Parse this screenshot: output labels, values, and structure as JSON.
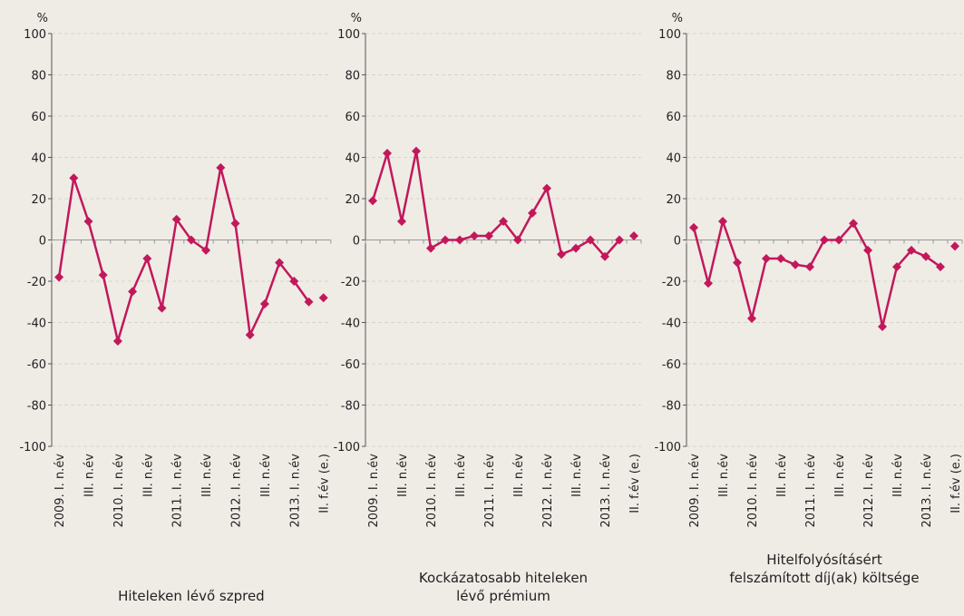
{
  "chart_data": [
    {
      "type": "line",
      "unit": "%",
      "title": [
        "Hiteleken lévő szpred"
      ],
      "categories": [
        "2009. I. n.év",
        null,
        "III. n.év",
        null,
        "2010. I. n.év",
        null,
        "III. n.év",
        null,
        "2011. I. n.év",
        null,
        "III. n.év",
        null,
        "2012. I. n.év",
        null,
        "III. n.év",
        null,
        "2013. I. n.év",
        null,
        "II. f.év (e.)"
      ],
      "series": [
        {
          "color": "#c2185b",
          "values": [
            -18,
            30,
            9,
            -17,
            -49,
            -25,
            -9,
            -33,
            10,
            0,
            -5,
            35,
            8,
            -46,
            -31,
            -11,
            -20,
            -30,
            null
          ]
        },
        {
          "color": "#c2185b",
          "values": [
            null,
            null,
            null,
            null,
            null,
            null,
            null,
            null,
            null,
            null,
            null,
            null,
            null,
            null,
            null,
            null,
            null,
            null,
            -28
          ]
        }
      ],
      "ylim": [
        -100,
        100
      ],
      "yticks": [
        -100,
        -80,
        -60,
        -40,
        -20,
        0,
        20,
        40,
        60,
        80,
        100
      ],
      "grid": true
    },
    {
      "type": "line",
      "unit": "%",
      "title": [
        "Kockázatosabb hiteleken",
        "lévő prémium"
      ],
      "categories": [
        "2009. I. n.év",
        null,
        "III. n.év",
        null,
        "2010. I. n.év",
        null,
        "III. n.év",
        null,
        "2011. I. n.év",
        null,
        "III. n.év",
        null,
        "2012. I. n.év",
        null,
        "III. n.év",
        null,
        "2013. I. n.év",
        null,
        "II. f.év (e.)"
      ],
      "series": [
        {
          "color": "#c2185b",
          "values": [
            19,
            42,
            9,
            43,
            -4,
            0,
            0,
            2,
            2,
            9,
            0,
            13,
            25,
            -7,
            -4,
            0,
            -8,
            0,
            null
          ]
        },
        {
          "color": "#c2185b",
          "values": [
            null,
            null,
            null,
            null,
            null,
            null,
            null,
            null,
            null,
            null,
            null,
            null,
            null,
            null,
            null,
            null,
            null,
            null,
            2
          ]
        }
      ],
      "ylim": [
        -100,
        100
      ],
      "yticks": [
        -100,
        -80,
        -60,
        -40,
        -20,
        0,
        20,
        40,
        60,
        80,
        100
      ],
      "grid": true
    },
    {
      "type": "line",
      "unit": "%",
      "title": [
        "Hitelfolyósításért",
        "felszámított díj(ak) költsége"
      ],
      "categories": [
        "2009. I. n.év",
        null,
        "III. n.év",
        null,
        "2010. I. n.év",
        null,
        "III. n.év",
        null,
        "2011. I. n.év",
        null,
        "III. n.év",
        null,
        "2012. I. n.év",
        null,
        "III. n.év",
        null,
        "2013. I. n.év",
        null,
        "II. f.év (e.)"
      ],
      "series": [
        {
          "color": "#c2185b",
          "values": [
            6,
            -21,
            9,
            -11,
            -38,
            -9,
            -9,
            -12,
            -13,
            0,
            0,
            8,
            -5,
            -42,
            -13,
            -5,
            -8,
            -13,
            null
          ]
        },
        {
          "color": "#c2185b",
          "values": [
            null,
            null,
            null,
            null,
            null,
            null,
            null,
            null,
            null,
            null,
            null,
            null,
            null,
            null,
            null,
            null,
            null,
            null,
            -3
          ]
        }
      ],
      "ylim": [
        -100,
        100
      ],
      "yticks": [
        -100,
        -80,
        -60,
        -40,
        -20,
        0,
        20,
        40,
        60,
        80,
        100
      ],
      "grid": true
    }
  ]
}
